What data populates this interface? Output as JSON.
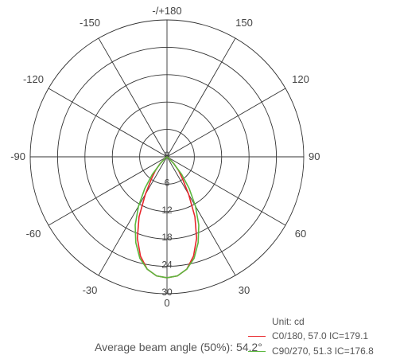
{
  "chart_data": {
    "type": "polar-line",
    "unit_label": "Unit: cd",
    "angle_labels": [
      {
        "angle": 180,
        "text": "-/+180"
      },
      {
        "angle": 150,
        "text": "150"
      },
      {
        "angle": 120,
        "text": "120"
      },
      {
        "angle": 90,
        "text": "90"
      },
      {
        "angle": 60,
        "text": "60"
      },
      {
        "angle": 30,
        "text": "30"
      },
      {
        "angle": 0,
        "text": "0"
      },
      {
        "angle": -30,
        "text": "-30"
      },
      {
        "angle": -60,
        "text": "-60"
      },
      {
        "angle": -90,
        "text": "-90"
      },
      {
        "angle": -120,
        "text": "-120"
      },
      {
        "angle": -150,
        "text": "-150"
      }
    ],
    "radial_ticks": [
      "0",
      "6",
      "12",
      "18",
      "24",
      "30"
    ],
    "radial_max": 30,
    "series": [
      {
        "name": "C0/180, 57.0  IC=179.1",
        "color": "#e8262b",
        "angles": [
          -90,
          -60,
          -50,
          -45,
          -40,
          -35,
          -30,
          -25,
          -20,
          -15,
          -10,
          -5,
          0,
          5,
          10,
          15,
          20,
          25,
          30,
          35,
          40,
          45,
          50,
          60,
          90
        ],
        "values": [
          0,
          0,
          0.5,
          2.2,
          4.0,
          6.0,
          9.5,
          14.5,
          19.0,
          22.5,
          25.0,
          26.2,
          26.5,
          26.2,
          25.0,
          22.5,
          19.0,
          14.5,
          9.5,
          6.0,
          4.0,
          2.2,
          0.5,
          0,
          0
        ]
      },
      {
        "name": "C90/270, 51.3  IC=176.8",
        "color": "#5cb83f",
        "angles": [
          -90,
          -60,
          -50,
          -45,
          -40,
          -35,
          -30,
          -25,
          -20,
          -15,
          -10,
          -5,
          0,
          5,
          10,
          15,
          20,
          25,
          30,
          35,
          40,
          45,
          50,
          60,
          90
        ],
        "values": [
          0,
          0,
          0.4,
          2.0,
          5.0,
          8.5,
          12.5,
          16.5,
          20.0,
          23.0,
          25.0,
          26.2,
          26.5,
          26.2,
          25.0,
          23.0,
          20.0,
          16.5,
          12.5,
          8.5,
          5.0,
          2.0,
          0.4,
          0,
          0
        ]
      }
    ]
  },
  "footer": {
    "beam_angle_text": "Average beam angle (50%): 54.2°"
  }
}
